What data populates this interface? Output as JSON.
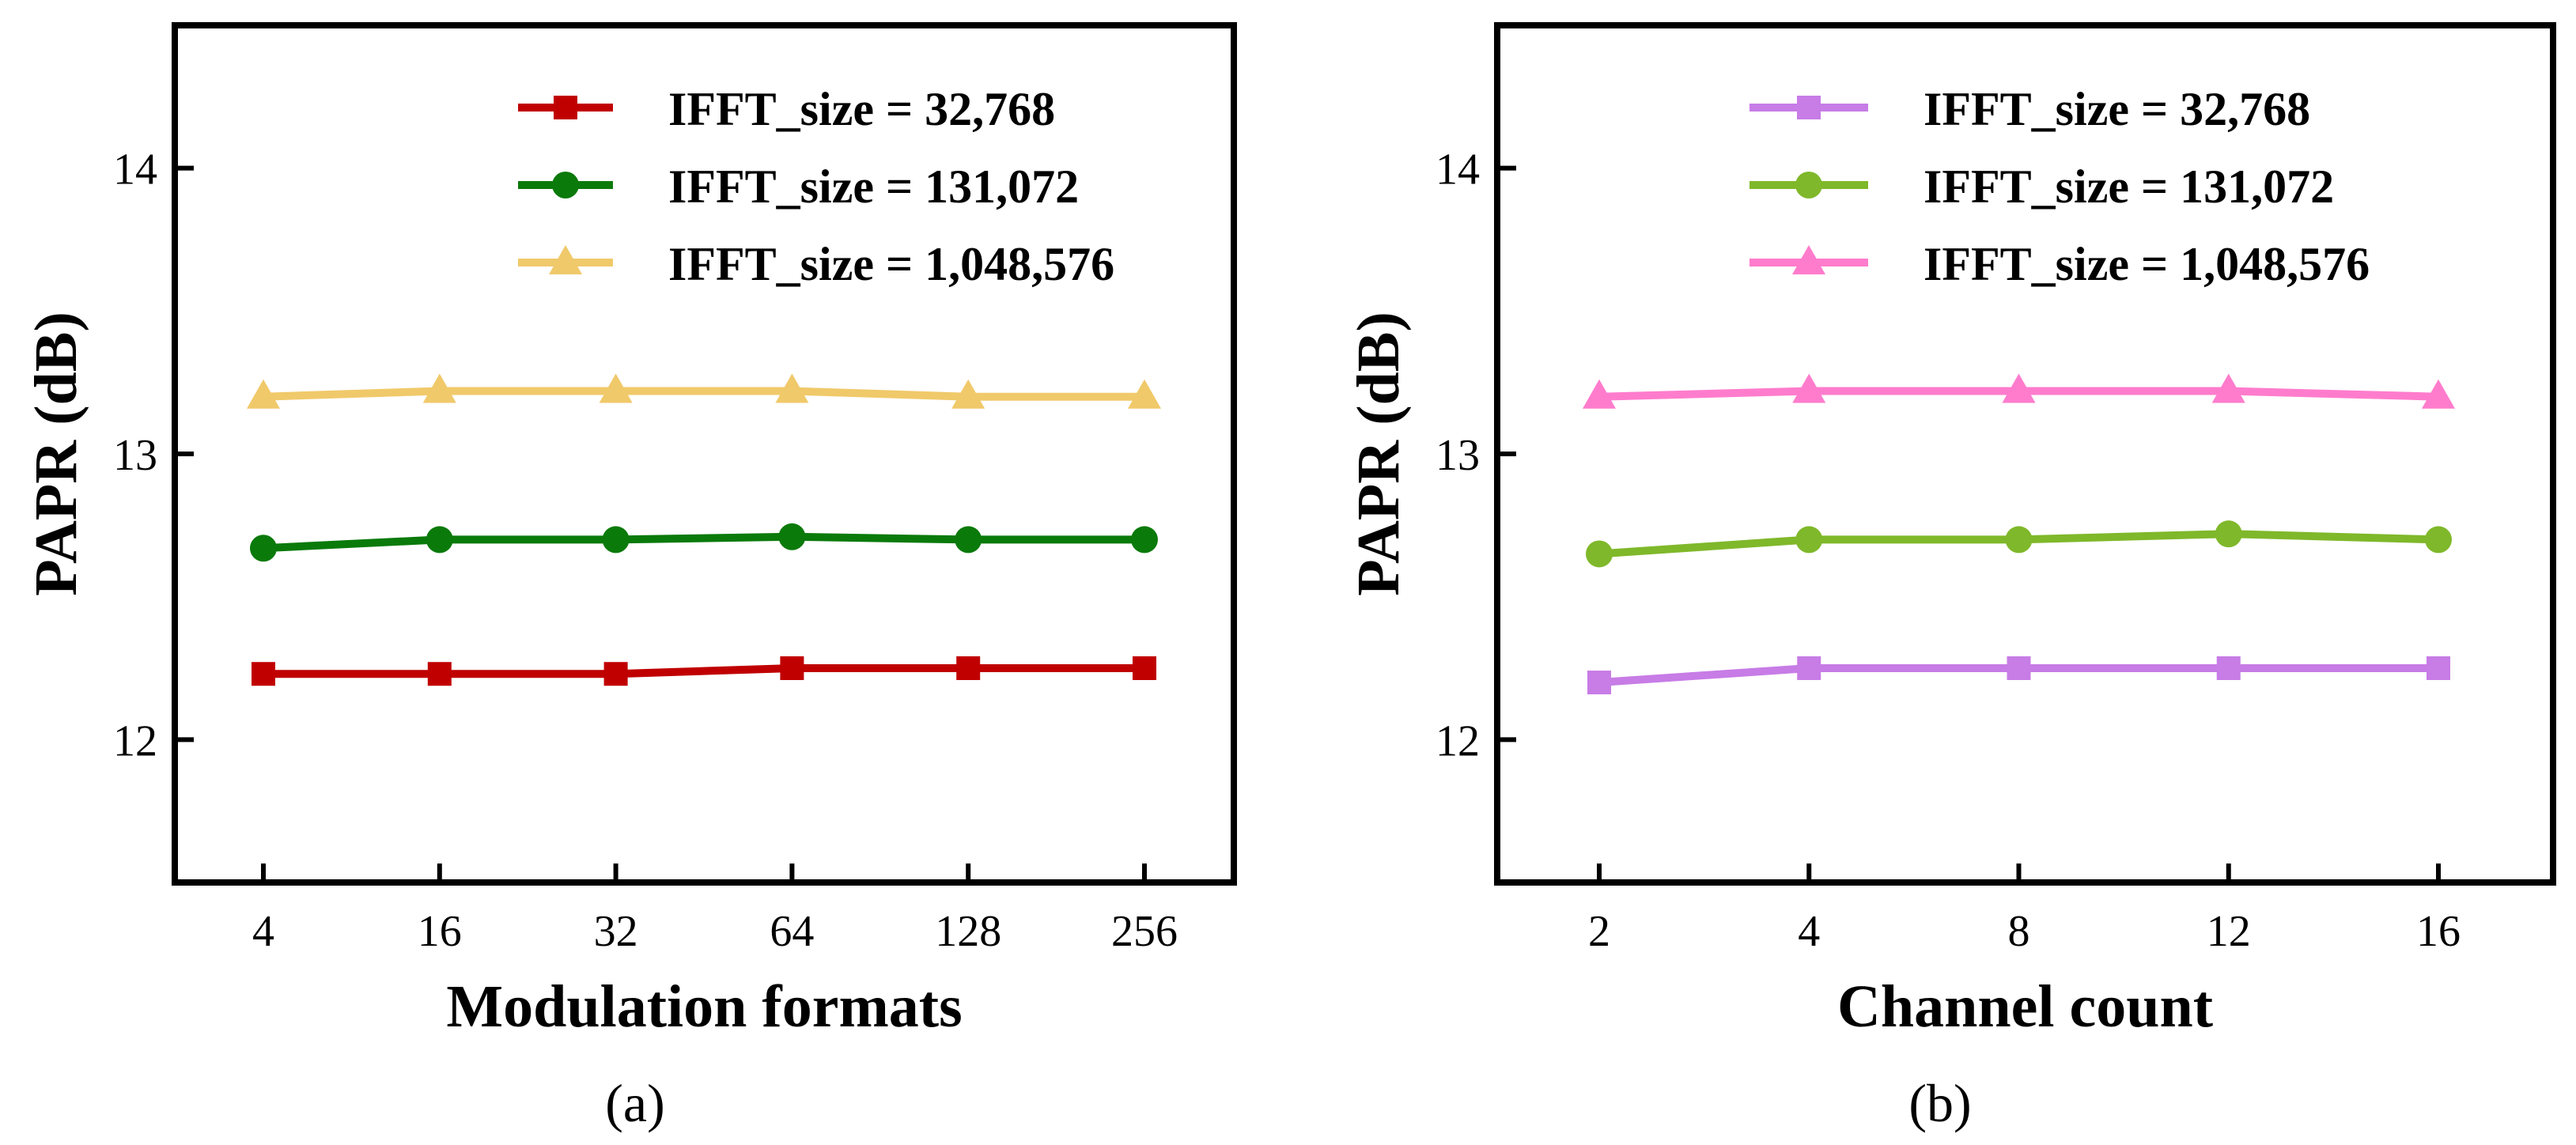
{
  "chart_data": [
    {
      "type": "line",
      "panel_label": "(a)",
      "xlabel": "Modulation formats",
      "ylabel": "PAPR (dB)",
      "categories": [
        "4",
        "16",
        "32",
        "64",
        "128",
        "256"
      ],
      "ylim": [
        11.5,
        14.5
      ],
      "yticks": [
        12,
        13,
        14
      ],
      "legend_position": "top-right",
      "series": [
        {
          "name": "IFFT_size = 32,768",
          "marker": "square",
          "color": "#c00000",
          "values": [
            12.23,
            12.23,
            12.23,
            12.25,
            12.25,
            12.25
          ]
        },
        {
          "name": "IFFT_size = 131,072",
          "marker": "circle",
          "color": "#0a7a0a",
          "values": [
            12.67,
            12.7,
            12.7,
            12.71,
            12.7,
            12.7
          ]
        },
        {
          "name": "IFFT_size = 1,048,576",
          "marker": "triangle",
          "color": "#f0c96a",
          "values": [
            13.2,
            13.22,
            13.22,
            13.22,
            13.2,
            13.2
          ]
        }
      ]
    },
    {
      "type": "line",
      "panel_label": "(b)",
      "xlabel": "Channel count",
      "ylabel": "PAPR (dB)",
      "categories": [
        "2",
        "4",
        "8",
        "12",
        "16"
      ],
      "ylim": [
        11.5,
        14.5
      ],
      "yticks": [
        12,
        13,
        14
      ],
      "legend_position": "top-right",
      "series": [
        {
          "name": "IFFT_size = 32,768",
          "marker": "square",
          "color": "#c77ce6",
          "values": [
            12.2,
            12.25,
            12.25,
            12.25,
            12.25
          ]
        },
        {
          "name": "IFFT_size = 131,072",
          "marker": "circle",
          "color": "#7fb82a",
          "values": [
            12.65,
            12.7,
            12.7,
            12.72,
            12.7
          ]
        },
        {
          "name": "IFFT_size = 1,048,576",
          "marker": "triangle",
          "color": "#ff7ccd",
          "values": [
            13.2,
            13.22,
            13.22,
            13.22,
            13.2
          ]
        }
      ]
    }
  ]
}
